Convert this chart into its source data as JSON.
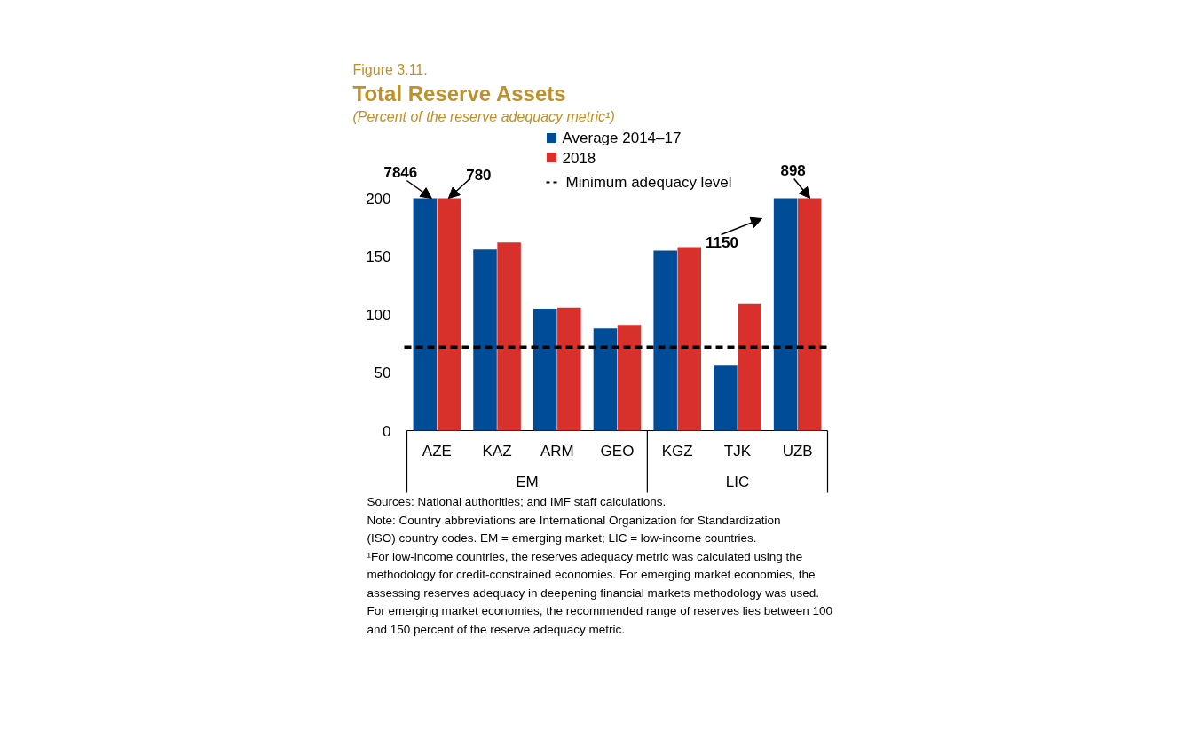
{
  "chart_data": {
    "type": "bar",
    "title": "Total Reserve Assets",
    "subtitle": "(Percent of the reserve adequacy metric¹)",
    "categories": [
      "AZE",
      "KAZ",
      "ARM",
      "GEO",
      "KGZ",
      "TJK",
      "UZB"
    ],
    "series": [
      {
        "name": "Average 2014–17",
        "color": "#004c97",
        "values": [
          200,
          156,
          105,
          88,
          155,
          56,
          200
        ]
      },
      {
        "name": "2018",
        "color": "#d8312c",
        "values": [
          200,
          162,
          106,
          91,
          158,
          109,
          200
        ]
      }
    ],
    "ylim": [
      0,
      200
    ],
    "yticks": [
      0,
      50,
      100,
      150,
      200
    ],
    "grid": false,
    "legend": "top right",
    "ref_lines": [
      {
        "axis": "y",
        "value": 72,
        "label": "Minimum adequacy level",
        "line_style": "dashed",
        "color": "#000000"
      }
    ],
    "annotations": [
      {
        "text": "7846",
        "x": "AZE",
        "y": 200
      },
      {
        "text": "780",
        "x": "AZE",
        "y": 200
      },
      {
        "text": "898",
        "x": "UZB",
        "y": 200
      },
      "Figure 3.11.",
      "EM",
      "LIC",
      "Sources: National authorities; and IMF staff calculations.",
      "Note: Country abbreviations are International Organization for Standardization (ISO) country codes. EM = emerging market; LIC = low-income countries.",
      "¹For low-income countries, the reserves adequacy metric was calculated using the methodology for credit-constrained economies. For emerging market economies, the assessing reserves adequacy in deepening financial markets methodology was used. For emerging market economies, the recommended range of reserves lies between 100 and 150 percent of the reserve adequacy metric.",
      "1150"
    ]
  }
}
